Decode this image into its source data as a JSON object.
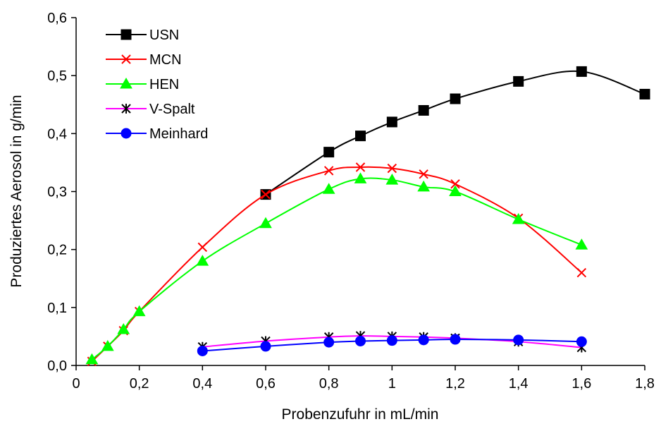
{
  "chart_data": {
    "type": "line",
    "title": "",
    "xlabel": "Probenzufuhr in mL/min",
    "ylabel": "Produziertes Aerosol in g/min",
    "xlim": [
      0,
      1.8
    ],
    "ylim": [
      0,
      0.6
    ],
    "x_ticks": [
      "0",
      "0,2",
      "0,4",
      "0,6",
      "0,8",
      "1",
      "1,2",
      "1,4",
      "1,6",
      "1,8"
    ],
    "y_ticks": [
      "0,0",
      "0,1",
      "0,2",
      "0,3",
      "0,4",
      "0,5",
      "0,6"
    ],
    "grid": false,
    "legend_position": "top-left",
    "series": [
      {
        "name": "USN",
        "color": "#000000",
        "marker": "square",
        "x": [
          0.6,
          0.8,
          0.9,
          1.0,
          1.1,
          1.2,
          1.4,
          1.6,
          1.8
        ],
        "y": [
          0.295,
          0.368,
          0.396,
          0.42,
          0.44,
          0.46,
          0.49,
          0.507,
          0.468
        ]
      },
      {
        "name": "MCN",
        "color": "#ff0000",
        "marker": "x",
        "x": [
          0.05,
          0.1,
          0.15,
          0.2,
          0.4,
          0.6,
          0.8,
          0.9,
          1.0,
          1.1,
          1.2,
          1.4,
          1.6
        ],
        "y": [
          0.007,
          0.033,
          0.06,
          0.093,
          0.204,
          0.295,
          0.336,
          0.342,
          0.34,
          0.33,
          0.313,
          0.254,
          0.16
        ]
      },
      {
        "name": "HEN",
        "color": "#00ff00",
        "marker": "triangle",
        "x": [
          0.05,
          0.1,
          0.15,
          0.2,
          0.4,
          0.6,
          0.8,
          0.9,
          1.0,
          1.1,
          1.2,
          1.4,
          1.6
        ],
        "y": [
          0.01,
          0.033,
          0.062,
          0.093,
          0.18,
          0.245,
          0.304,
          0.322,
          0.32,
          0.308,
          0.3,
          0.252,
          0.208
        ]
      },
      {
        "name": "V-Spalt",
        "color": "#ff00ff",
        "marker": "star",
        "x": [
          0.4,
          0.6,
          0.8,
          0.9,
          1.0,
          1.1,
          1.2,
          1.4,
          1.6
        ],
        "y": [
          0.032,
          0.042,
          0.049,
          0.051,
          0.05,
          0.049,
          0.047,
          0.041,
          0.031
        ]
      },
      {
        "name": "Meinhard",
        "color": "#0000ff",
        "marker": "circle",
        "x": [
          0.4,
          0.6,
          0.8,
          0.9,
          1.0,
          1.1,
          1.2,
          1.4,
          1.6
        ],
        "y": [
          0.025,
          0.033,
          0.04,
          0.042,
          0.043,
          0.044,
          0.045,
          0.044,
          0.041
        ]
      }
    ]
  }
}
